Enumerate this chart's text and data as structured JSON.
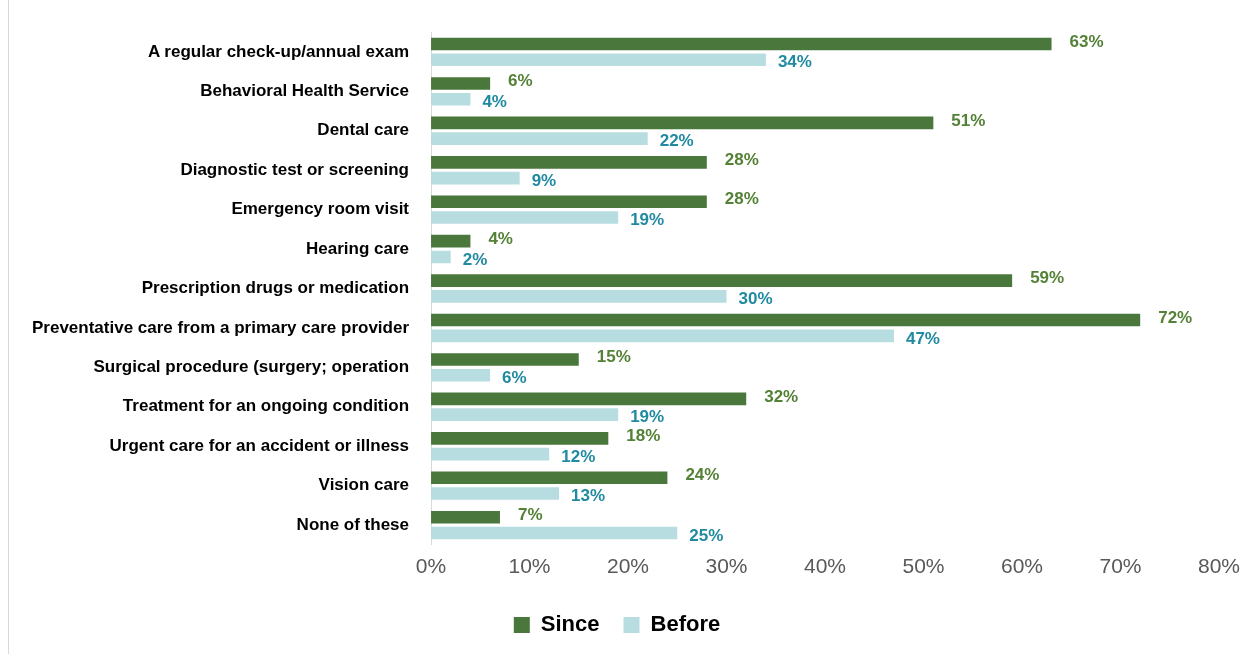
{
  "chart_data": {
    "type": "bar",
    "orientation": "horizontal",
    "categories": [
      "A regular check-up/annual exam",
      "Behavioral Health Service",
      "Dental care",
      "Diagnostic test or screening",
      "Emergency room visit",
      "Hearing care",
      "Prescription drugs or medication",
      "Preventative care from a primary care provider",
      "Surgical procedure (surgery; operation",
      "Treatment for an ongoing condition",
      "Urgent care for an accident or illness",
      "Vision care",
      "None of these"
    ],
    "series": [
      {
        "name": "Since",
        "color": "#4a773c",
        "values": [
          63,
          6,
          51,
          28,
          28,
          4,
          59,
          72,
          15,
          32,
          18,
          24,
          7
        ],
        "value_labels": [
          "63%",
          "6%",
          "51%",
          "28%",
          "28%",
          "4%",
          "59%",
          "72%",
          "15%",
          "32%",
          "18%",
          "24%",
          "7%"
        ]
      },
      {
        "name": "Before",
        "color": "#b7dde0",
        "values": [
          34,
          4,
          22,
          9,
          19,
          2,
          30,
          47,
          6,
          19,
          12,
          13,
          25
        ],
        "value_labels": [
          "34%",
          "4%",
          "22%",
          "9%",
          "19%",
          "2%",
          "30%",
          "47%",
          "6%",
          "19%",
          "12%",
          "13%",
          "25%"
        ]
      }
    ],
    "xlim": [
      0,
      80
    ],
    "xticks": [
      {
        "value": 0,
        "label": "0%"
      },
      {
        "value": 10,
        "label": "10%"
      },
      {
        "value": 20,
        "label": "20%"
      },
      {
        "value": 30,
        "label": "30%"
      },
      {
        "value": 40,
        "label": "40%"
      },
      {
        "value": 50,
        "label": "50%"
      },
      {
        "value": 60,
        "label": "60%"
      },
      {
        "value": 70,
        "label": "70%"
      },
      {
        "value": 80,
        "label": "80%"
      }
    ],
    "grid": false,
    "legend": "bottom"
  }
}
